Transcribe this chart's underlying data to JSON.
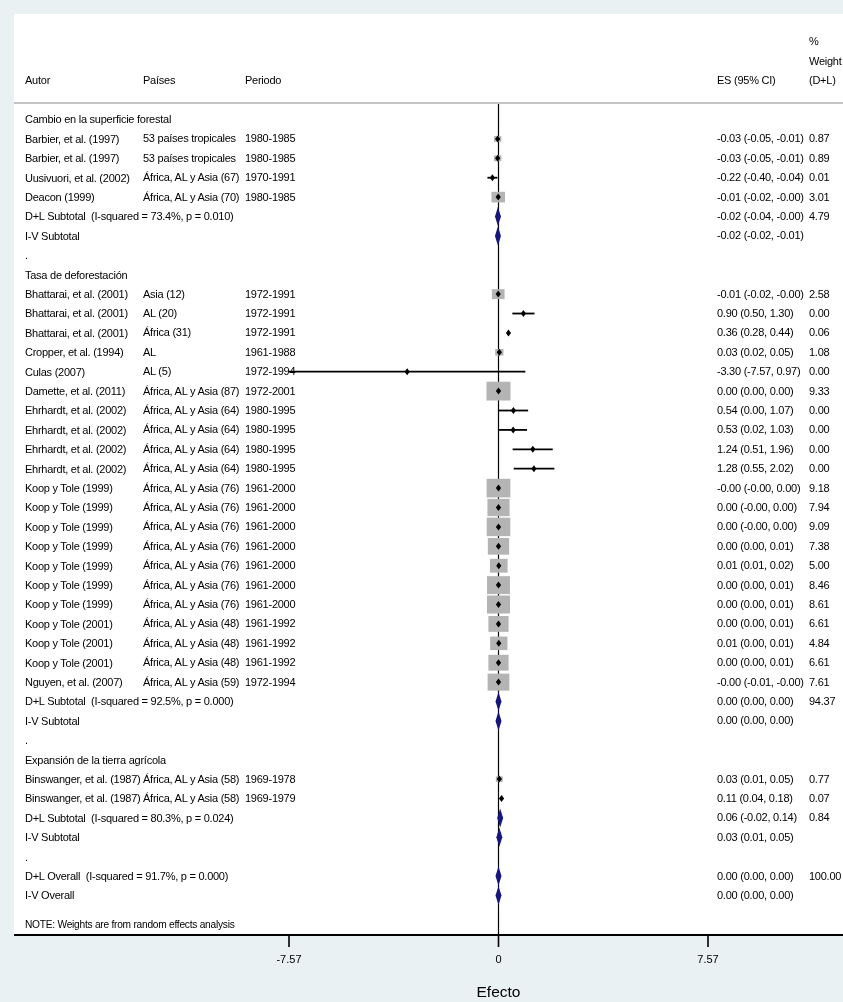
{
  "chart_data": {
    "type": "scatter",
    "orientation": "horizontal",
    "xlabel": "Efecto",
    "categories": [
      "Cambio en la superficie forestal",
      "Barbier, et al. (1997)",
      "Barbier, et al. (1997)",
      "Uusivuori, et al. (2002)",
      "Deacon (1999)",
      "D+L Subtotal  (I-squared = 73.4%, p = 0.010)",
      "I-V Subtotal",
      ".",
      "Tasa de deforestación",
      "Bhattarai, et al. (2001)",
      "Bhattarai, et al. (2001)",
      "Bhattarai, et al. (2001)",
      "Cropper, et al. (1994)",
      "Culas (2007)",
      "Damette, et al. (2011)",
      "Ehrhardt, et al. (2002)",
      "Ehrhardt, et al. (2002)",
      "Ehrhardt, et al. (2002)",
      "Ehrhardt, et al. (2002)",
      "Koop y Tole (1999)",
      "Koop y Tole (1999)",
      "Koop y Tole (1999)",
      "Koop y Tole (1999)",
      "Koop y Tole (1999)",
      "Koop y Tole (1999)",
      "Koop y Tole (1999)",
      "Koop y Tole (2001)",
      "Koop y Tole (2001)",
      "Koop y Tole (2001)",
      "Nguyen, et al. (2007)",
      "D+L Subtotal  (I-squared = 92.5%, p = 0.000)",
      "I-V Subtotal",
      ".",
      "Expansión de la tierra agrícola",
      "Binswanger, et al. (1987)",
      "Binswanger, et al. (1987)",
      "D+L Subtotal  (I-squared = 80.3%, p = 0.024)",
      "I-V Subtotal",
      ".",
      "D+L Overall  (I-squared = 91.7%, p = 0.000)",
      "I-V Overall"
    ],
    "xlim": [
      -7.57,
      7.57
    ],
    "xticks": [
      -7.57,
      0,
      7.57
    ],
    "ref_lines": [
      {
        "axis": "x",
        "value": 0,
        "color": "#000000"
      }
    ],
    "annotations": [
      "Autor",
      "Países",
      "Periodo",
      "ES (95% CI)",
      "% Weight (D+L)",
      "NOTE: Weights are from random effects analysis",
      "53 países tropicales",
      "1980-1985",
      "-0.03 (-0.05, -0.01)",
      "0.87",
      "53 países tropicales",
      "1980-1985",
      "-0.03 (-0.05, -0.01)",
      "0.89",
      "África, AL y Asia (67)",
      "1970-1991",
      "-0.22 (-0.40, -0.04)",
      "0.01",
      "África, AL y Asia (70)",
      "1980-1985",
      "-0.01 (-0.02, -0.00)",
      "3.01",
      "-0.02 (-0.04, -0.00)",
      "4.79",
      "-0.02 (-0.02, -0.01)",
      "Asia (12)",
      "1972-1991",
      "-0.01 (-0.02, -0.00)",
      "2.58",
      "AL (20)",
      "1972-1991",
      "0.90 (0.50, 1.30)",
      "0.00",
      "África (31)",
      "1972-1991",
      "0.36 (0.28, 0.44)",
      "0.06",
      "AL",
      "1961-1988",
      "0.03 (0.02, 0.05)",
      "1.08",
      "AL (5)",
      "1972-1994",
      "-3.30 (-7.57, 0.97)",
      "0.00",
      "África, AL y Asia (87)",
      "1972-2001",
      "0.00 (0.00, 0.00)",
      "9.33",
      "África, AL y Asia (64)",
      "1980-1995",
      "0.54 (0.00, 1.07)",
      "0.00",
      "África, AL y Asia (64)",
      "1980-1995",
      "0.53 (0.02, 1.03)",
      "0.00",
      "África, AL y Asia (64)",
      "1980-1995",
      "1.24 (0.51, 1.96)",
      "0.00",
      "África, AL y Asia (64)",
      "1980-1995",
      "1.28 (0.55, 2.02)",
      "0.00",
      "África, AL y Asia (76)",
      "1961-2000",
      "-0.00 (-0.00, 0.00)",
      "9.18",
      "África, AL y Asia (76)",
      "1961-2000",
      "0.00 (-0.00, 0.00)",
      "7.94",
      "África, AL y Asia (76)",
      "1961-2000",
      "0.00 (-0.00, 0.00)",
      "9.09",
      "África, AL y Asia (76)",
      "1961-2000",
      "0.00 (0.00, 0.01)",
      "7.38",
      "África, AL y Asia (76)",
      "1961-2000",
      "0.01 (0.01, 0.02)",
      "5.00",
      "África, AL y Asia (76)",
      "1961-2000",
      "0.00 (0.00, 0.01)",
      "8.46",
      "África, AL y Asia (76)",
      "1961-2000",
      "0.00 (0.00, 0.01)",
      "8.61",
      "África, AL y Asia (48)",
      "1961-1992",
      "0.00 (0.00, 0.01)",
      "6.61",
      "África, AL y Asia (48)",
      "1961-1992",
      "0.01 (0.00, 0.01)",
      "4.84",
      "África, AL y Asia (48)",
      "1961-1992",
      "0.00 (0.00, 0.01)",
      "6.61",
      "África, AL y Asia (59)",
      "1972-1994",
      "-0.00 (-0.01, -0.00)",
      "7.61",
      "0.00 (0.00, 0.00)",
      "94.37",
      "0.00 (0.00, 0.00)",
      "África, AL y Asia (58)",
      "1969-1978",
      "0.03 (0.01, 0.05)",
      "0.77",
      "África, AL y Asia (58)",
      "1969-1979",
      "0.11 (0.04, 0.18)",
      "0.07",
      "0.06 (-0.02, 0.14)",
      "0.84",
      "0.03 (0.01, 0.05)",
      "0.00 (0.00, 0.00)",
      "100.00",
      "0.00 (0.00, 0.00)"
    ],
    "series": [
      {
        "type": "bubble",
        "marker": "square",
        "color": "#b4b4b4",
        "values": [
          null,
          -0.03,
          -0.03,
          null,
          -0.01,
          null,
          null,
          null,
          null,
          -0.01,
          null,
          null,
          0.03,
          null,
          0,
          null,
          null,
          null,
          null,
          0,
          0,
          0,
          0,
          0.01,
          0,
          0,
          0,
          0.01,
          0,
          0,
          null,
          null,
          null,
          null,
          0.03,
          null,
          null,
          null,
          null,
          null,
          null
        ],
        "sizes": [
          null,
          0.093,
          0.095,
          null,
          0.32,
          null,
          null,
          null,
          null,
          0.28,
          null,
          null,
          0.12,
          null,
          1,
          null,
          null,
          null,
          null,
          0.98,
          0.85,
          0.97,
          0.79,
          0.54,
          0.91,
          0.92,
          0.71,
          0.52,
          0.71,
          0.82,
          null,
          null,
          null,
          null,
          0.083,
          null,
          null,
          null,
          null,
          null,
          null
        ]
      },
      {
        "type": "scatter",
        "marker": "diamond",
        "color": "#000000",
        "values": [
          null,
          -0.03,
          -0.03,
          -0.22,
          -0.01,
          null,
          null,
          null,
          null,
          -0.01,
          0.9,
          0.36,
          0.03,
          -3.3,
          0,
          0.54,
          0.53,
          1.24,
          1.28,
          0,
          0,
          0,
          0,
          0.01,
          0,
          0,
          0,
          0.01,
          0,
          0,
          null,
          null,
          null,
          null,
          0.03,
          0.11,
          null,
          null,
          null,
          null,
          null
        ],
        "errors": [
          null,
          null,
          null,
          [
            -0.4,
            -0.04
          ],
          null,
          null,
          null,
          null,
          null,
          null,
          [
            0.5,
            1.3
          ],
          null,
          null,
          [
            -7.57,
            0.97
          ],
          null,
          [
            0,
            1.07
          ],
          [
            0.02,
            1.03
          ],
          [
            0.51,
            1.96
          ],
          [
            0.55,
            2.02
          ],
          null,
          null,
          null,
          null,
          null,
          null,
          null,
          null,
          null,
          null,
          null,
          null,
          null,
          null,
          null,
          null,
          null,
          null,
          null,
          null,
          null,
          null
        ]
      },
      {
        "type": "scatter",
        "marker": "diamond",
        "color": "#16167a",
        "values": [
          null,
          null,
          null,
          null,
          null,
          -0.02,
          null,
          null,
          null,
          null,
          null,
          null,
          null,
          null,
          null,
          null,
          null,
          null,
          null,
          null,
          null,
          null,
          null,
          null,
          null,
          null,
          null,
          null,
          null,
          null,
          0,
          null,
          null,
          null,
          null,
          null,
          0.06,
          null,
          null,
          0,
          null
        ]
      },
      {
        "type": "scatter",
        "marker": "diamond",
        "color": "#16167a",
        "values": [
          null,
          null,
          null,
          null,
          null,
          null,
          -0.02,
          null,
          null,
          null,
          null,
          null,
          null,
          null,
          null,
          null,
          null,
          null,
          null,
          null,
          null,
          null,
          null,
          null,
          null,
          null,
          null,
          null,
          null,
          null,
          null,
          0,
          null,
          null,
          null,
          null,
          null,
          0.03,
          null,
          null,
          0
        ]
      }
    ]
  }
}
